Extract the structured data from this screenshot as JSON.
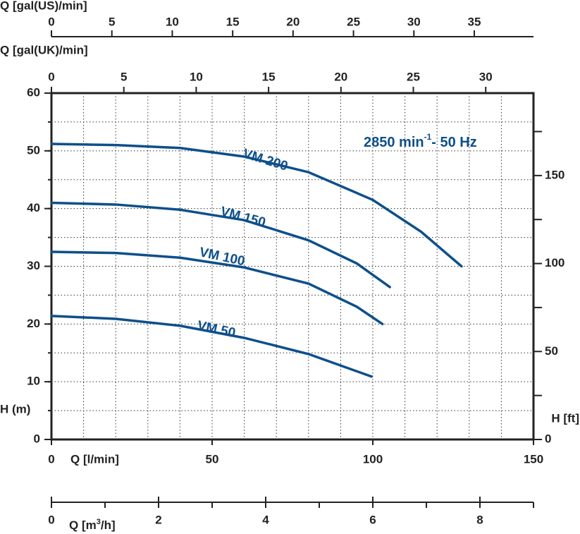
{
  "chart_data": {
    "type": "line",
    "xlabel": "Q [l/min]",
    "ylabel": "H (m)",
    "xlim": [
      0,
      150
    ],
    "xticks": [
      0,
      50,
      100,
      150
    ],
    "xgrid": [
      10,
      20,
      30,
      40,
      50,
      60,
      70,
      80,
      90,
      100,
      110,
      120,
      130,
      140
    ],
    "ylim": [
      0,
      60
    ],
    "yticks": [
      0,
      10,
      20,
      30,
      40,
      50,
      60
    ],
    "ygrid": [
      5,
      10,
      15,
      20,
      25,
      30,
      35,
      40,
      45,
      50,
      55
    ],
    "grid": true,
    "y2label": "H [ft]",
    "y2lim": [
      0,
      196.85
    ],
    "y2ticks": [
      0,
      50,
      100,
      150
    ],
    "y2_minor_ticks": [
      25,
      75,
      125,
      175
    ],
    "top_axes": [
      {
        "label": "Q [gal(US)/min]",
        "xlim": [
          0,
          39.9
        ],
        "xticks": [
          0,
          5,
          10,
          15,
          20,
          25,
          30,
          35
        ]
      },
      {
        "label": "Q [gal(UK)/min]",
        "xlim": [
          0,
          33.3
        ],
        "xticks": [
          0,
          5,
          10,
          15,
          20,
          25,
          30
        ]
      }
    ],
    "bottom_axis": {
      "label": {
        "text": "Q [m",
        "sup": "3",
        "after": "/h]"
      },
      "xlim": [
        0,
        9
      ],
      "xticks": [
        0,
        2,
        4,
        6,
        8
      ],
      "minor_ticks": [
        1,
        3,
        5,
        7,
        9
      ]
    },
    "annotation": {
      "text": "2850 min",
      "sup": "-1",
      "after": "- 50 Hz"
    },
    "series": [
      {
        "name": "VM 200",
        "color": "#0d4f8b",
        "x": [
          0,
          20,
          40,
          60,
          80,
          100,
          115,
          127.6
        ],
        "values": [
          51.2,
          51,
          50.5,
          49,
          46.3,
          41.5,
          36,
          30
        ]
      },
      {
        "name": "VM 150",
        "color": "#0d4f8b",
        "x": [
          0,
          20,
          40,
          60,
          80,
          95,
          105.3
        ],
        "values": [
          41,
          40.7,
          39.8,
          38,
          34.5,
          30.5,
          26.4
        ]
      },
      {
        "name": "VM 100",
        "color": "#0d4f8b",
        "x": [
          0,
          20,
          40,
          60,
          80,
          95,
          103
        ],
        "values": [
          32.5,
          32.3,
          31.5,
          29.8,
          27,
          23,
          20
        ]
      },
      {
        "name": "VM 50",
        "color": "#0d4f8b",
        "x": [
          0,
          20,
          40,
          60,
          80,
          99.6
        ],
        "values": [
          21.4,
          20.9,
          19.7,
          17.6,
          14.8,
          10.9
        ]
      }
    ]
  }
}
